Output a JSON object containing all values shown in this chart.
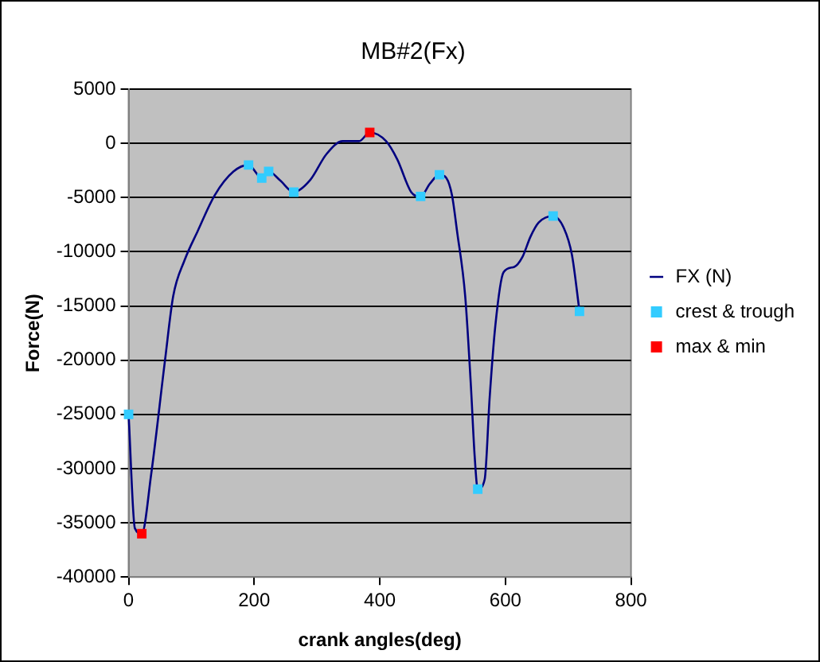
{
  "chart_data": {
    "type": "line",
    "title": "MB#2(Fx)",
    "xlabel": "crank angles(deg)",
    "ylabel": "Force(N)",
    "xlim": [
      0,
      800
    ],
    "xticks": [
      0,
      200,
      400,
      600,
      800
    ],
    "ylim": [
      -40000,
      5000
    ],
    "yticks": [
      -40000,
      -35000,
      -30000,
      -25000,
      -20000,
      -15000,
      -10000,
      -5000,
      0,
      5000
    ],
    "grid": "y",
    "legend": "right",
    "series": [
      {
        "name": "FX (N)",
        "type": "line",
        "color": "#000080",
        "marker": "none",
        "x": [
          0,
          10,
          21,
          36,
          58,
          71,
          89,
          110,
          137,
          167,
          191,
          212,
          223,
          241,
          263,
          289,
          315,
          341,
          367,
          384,
          410,
          428,
          450,
          465,
          480,
          495,
          506,
          515,
          523,
          536,
          545,
          551,
          556,
          567,
          575,
          584,
          597,
          614,
          627,
          640,
          653,
          676,
          693,
          706,
          718
        ],
        "values": [
          -25000,
          -35500,
          -36000,
          -30500,
          -20000,
          -14100,
          -10800,
          -8100,
          -4800,
          -2600,
          -2000,
          -3200,
          -2600,
          -3400,
          -4500,
          -3400,
          -1000,
          200,
          200,
          1000,
          200,
          -1500,
          -4500,
          -4900,
          -3700,
          -2900,
          -3200,
          -4800,
          -8100,
          -14100,
          -22300,
          -28800,
          -31900,
          -31000,
          -23400,
          -16800,
          -11900,
          -11400,
          -10500,
          -8600,
          -7300,
          -6700,
          -7800,
          -10300,
          -15500
        ]
      },
      {
        "name": "crest & trough",
        "type": "scatter",
        "color": "#33ccff",
        "marker": "square",
        "x": [
          0,
          191,
          212,
          223,
          263,
          465,
          495,
          556,
          676,
          718
        ],
        "values": [
          -25000,
          -2000,
          -3200,
          -2600,
          -4500,
          -4900,
          -2900,
          -31900,
          -6700,
          -15500
        ]
      },
      {
        "name": "max & min",
        "type": "scatter",
        "color": "#ff0000",
        "marker": "square",
        "x": [
          21,
          384
        ],
        "values": [
          -36000,
          1000
        ]
      }
    ]
  }
}
